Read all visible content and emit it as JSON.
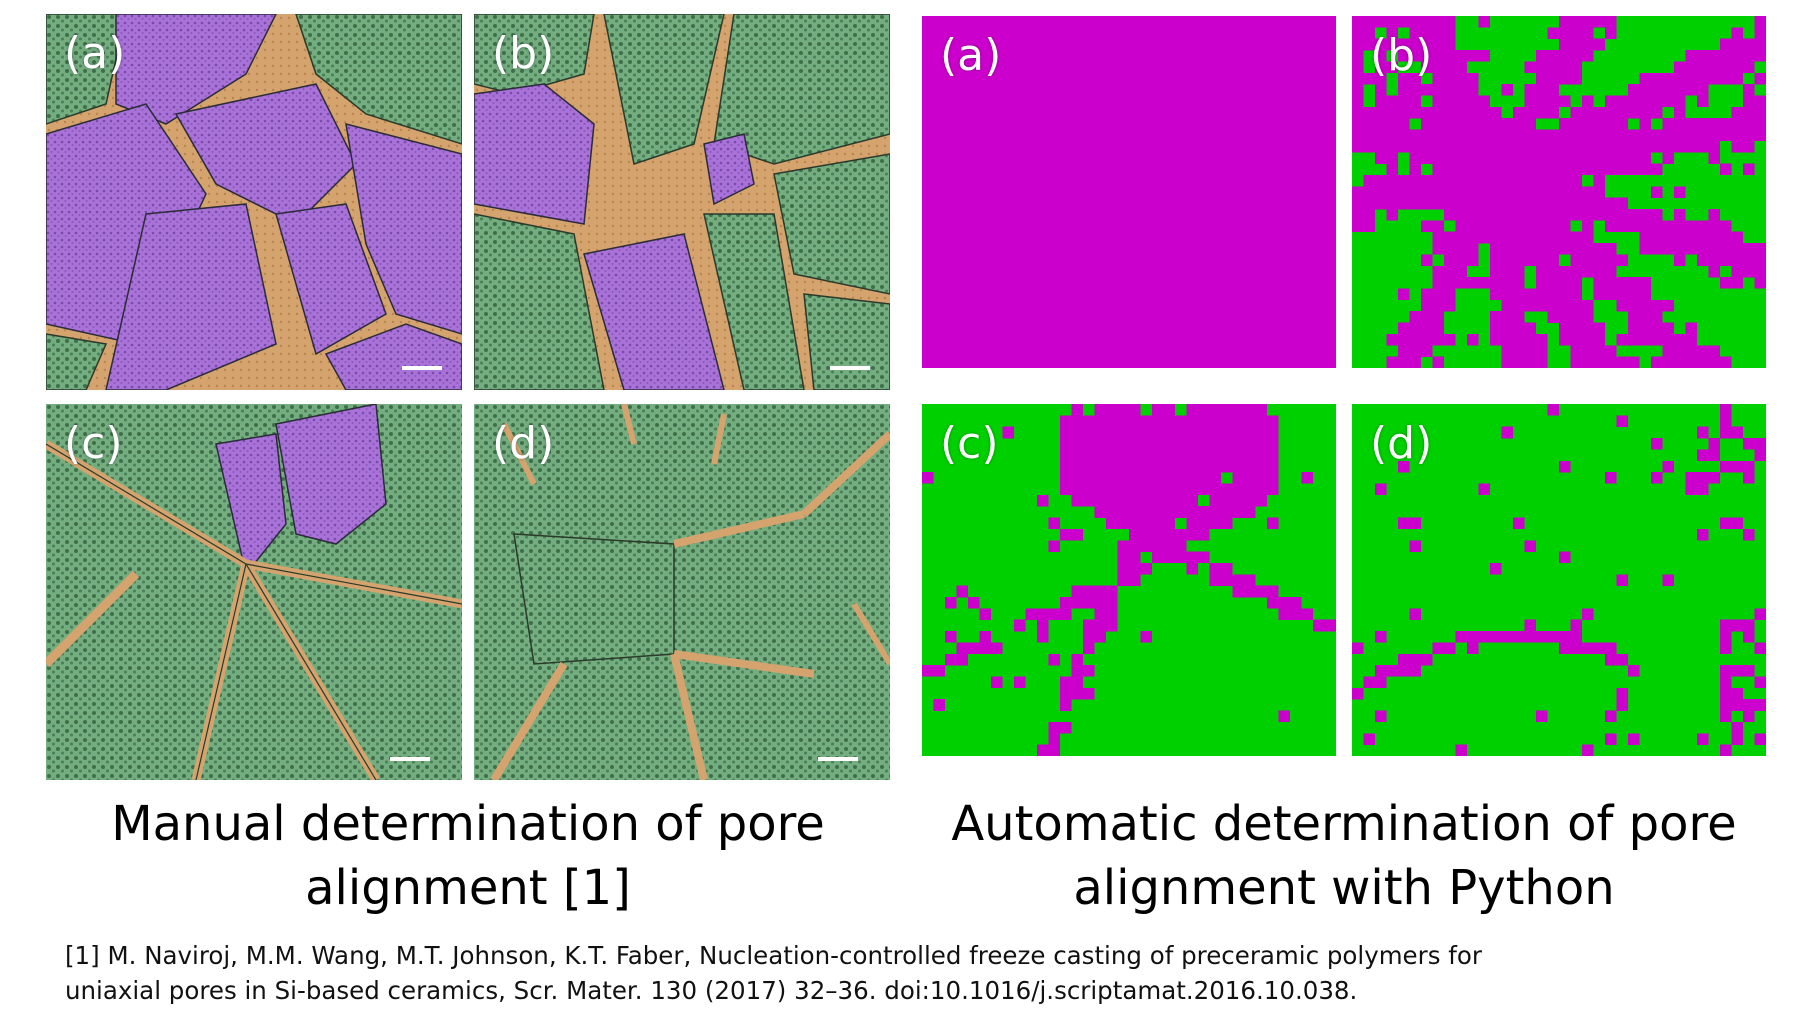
{
  "colors": {
    "purple": "#cc00cc",
    "green": "#00d000",
    "manual_purple": "#a76fd6",
    "manual_green": "#6fa77a",
    "manual_tan": "#d3a26c"
  },
  "manual": {
    "caption_line1": "Manual determination of pore",
    "caption_line2": "alignment [1]",
    "panels": [
      {
        "label": "(a)"
      },
      {
        "label": "(b)"
      },
      {
        "label": "(c)"
      },
      {
        "label": "(d)"
      }
    ]
  },
  "automatic": {
    "caption_line1": "Automatic determination of pore",
    "caption_line2": "alignment with Python",
    "panels": [
      {
        "label": "(a)"
      },
      {
        "label": "(b)"
      },
      {
        "label": "(c)"
      },
      {
        "label": "(d)"
      }
    ]
  },
  "reference": {
    "line1": "[1] M. Naviroj, M.M. Wang, M.T. Johnson, K.T. Faber, Nucleation-controlled freeze casting of preceramic polymers for",
    "line2": "uniaxial pores in Si-based ceramics, Scr. Mater. 130 (2017) 32–36. doi:10.1016/j.scriptamat.2016.10.038."
  }
}
